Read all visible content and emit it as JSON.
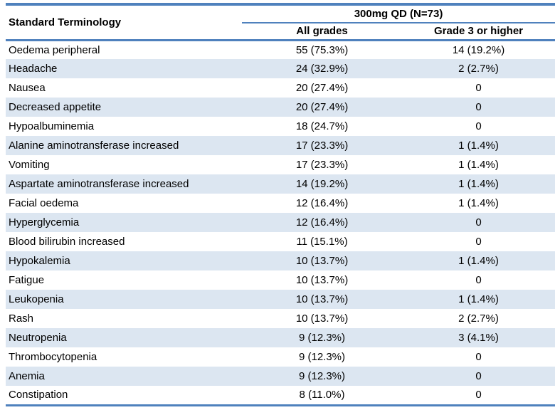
{
  "table": {
    "col1_header": "Standard Terminology",
    "group_header": "300mg QD (N=73)",
    "col2_header": "All grades",
    "col3_header": "Grade 3 or higher",
    "rows": [
      {
        "term": "Oedema peripheral",
        "all_grades": "55 (75.3%)",
        "grade3_or_higher": "14 (19.2%)"
      },
      {
        "term": "Headache",
        "all_grades": "24 (32.9%)",
        "grade3_or_higher": "2 (2.7%)"
      },
      {
        "term": "Nausea",
        "all_grades": "20 (27.4%)",
        "grade3_or_higher": "0"
      },
      {
        "term": "Decreased appetite",
        "all_grades": "20 (27.4%)",
        "grade3_or_higher": "0"
      },
      {
        "term": "Hypoalbuminemia",
        "all_grades": "18 (24.7%)",
        "grade3_or_higher": "0"
      },
      {
        "term": "Alanine aminotransferase increased",
        "all_grades": "17 (23.3%)",
        "grade3_or_higher": "1 (1.4%)"
      },
      {
        "term": "Vomiting",
        "all_grades": "17 (23.3%)",
        "grade3_or_higher": "1 (1.4%)"
      },
      {
        "term": "Aspartate aminotransferase increased",
        "all_grades": "14 (19.2%)",
        "grade3_or_higher": "1 (1.4%)"
      },
      {
        "term": "Facial oedema",
        "all_grades": "12 (16.4%)",
        "grade3_or_higher": "1 (1.4%)"
      },
      {
        "term": "Hyperglycemia",
        "all_grades": "12 (16.4%)",
        "grade3_or_higher": "0"
      },
      {
        "term": "Blood bilirubin increased",
        "all_grades": "11 (15.1%)",
        "grade3_or_higher": "0"
      },
      {
        "term": "Hypokalemia",
        "all_grades": "10 (13.7%)",
        "grade3_or_higher": "1 (1.4%)"
      },
      {
        "term": "Fatigue",
        "all_grades": "10 (13.7%)",
        "grade3_or_higher": "0"
      },
      {
        "term": "Leukopenia",
        "all_grades": "10 (13.7%)",
        "grade3_or_higher": "1 (1.4%)"
      },
      {
        "term": "Rash",
        "all_grades": "10 (13.7%)",
        "grade3_or_higher": "2 (2.7%)"
      },
      {
        "term": "Neutropenia",
        "all_grades": "9 (12.3%)",
        "grade3_or_higher": "3 (4.1%)"
      },
      {
        "term": "Thrombocytopenia",
        "all_grades": "9 (12.3%)",
        "grade3_or_higher": "0"
      },
      {
        "term": "Anemia",
        "all_grades": "9 (12.3%)",
        "grade3_or_higher": "0"
      },
      {
        "term": "Constipation",
        "all_grades": "8 (11.0%)",
        "grade3_or_higher": "0"
      }
    ]
  },
  "colors": {
    "accent_blue": "#4F81BD",
    "row_shading": "#DCE6F1",
    "text": "#000000"
  }
}
